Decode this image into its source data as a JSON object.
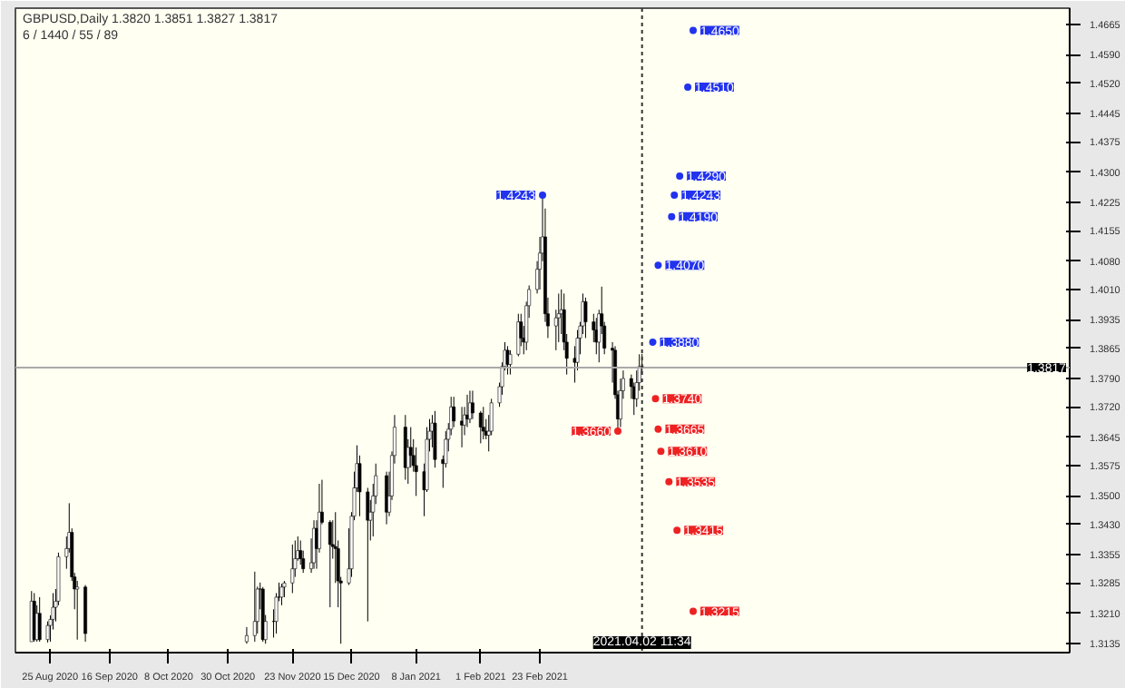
{
  "chart_data": {
    "type": "candlestick",
    "title": "GBPUSD,Daily 1.3820 1.3851 1.3827 1.3817",
    "subtitle": "6 / 1440 / 55 / 89",
    "x": [
      "2020-08-18",
      "2020-08-19",
      "2020-08-20",
      "2020-08-21",
      "2020-08-24",
      "2020-08-25",
      "2020-08-26",
      "2020-08-27",
      "2020-08-28",
      "2020-08-31",
      "2020-09-01",
      "2020-09-02",
      "2020-09-03",
      "2020-09-04",
      "2020-09-07",
      "2020-11-06",
      "2020-11-09",
      "2020-11-10",
      "2020-11-11",
      "2020-11-12",
      "2020-11-13",
      "2020-11-16",
      "2020-11-17",
      "2020-11-18",
      "2020-11-19",
      "2020-11-20",
      "2020-11-23",
      "2020-11-24",
      "2020-11-25",
      "2020-11-26",
      "2020-11-27",
      "2020-11-30",
      "2020-12-01",
      "2020-12-02",
      "2020-12-03",
      "2020-12-04",
      "2020-12-07",
      "2020-12-08",
      "2020-12-09",
      "2020-12-10",
      "2020-12-11",
      "2020-12-14",
      "2020-12-15",
      "2020-12-16",
      "2020-12-17",
      "2020-12-18",
      "2020-12-21",
      "2020-12-22",
      "2020-12-23",
      "2020-12-24",
      "2020-12-28",
      "2020-12-29",
      "2020-12-30",
      "2020-12-31",
      "2021-01-04",
      "2021-01-05",
      "2021-01-06",
      "2021-01-07",
      "2021-01-08",
      "2021-01-11",
      "2021-01-12",
      "2021-01-13",
      "2021-01-14",
      "2021-01-15",
      "2021-01-18",
      "2021-01-19",
      "2021-01-20",
      "2021-01-21",
      "2021-01-22",
      "2021-01-25",
      "2021-01-26",
      "2021-01-27",
      "2021-01-28",
      "2021-01-29",
      "2021-02-01",
      "2021-02-02",
      "2021-02-03",
      "2021-02-04",
      "2021-02-05",
      "2021-02-08",
      "2021-02-09",
      "2021-02-10",
      "2021-02-11",
      "2021-02-12",
      "2021-02-15",
      "2021-02-16",
      "2021-02-17",
      "2021-02-18",
      "2021-02-19",
      "2021-02-22",
      "2021-02-23",
      "2021-02-24",
      "2021-02-25",
      "2021-02-26",
      "2021-03-01",
      "2021-03-02",
      "2021-03-03",
      "2021-03-04",
      "2021-03-05",
      "2021-03-08",
      "2021-03-09",
      "2021-03-10",
      "2021-03-11",
      "2021-03-12",
      "2021-03-15",
      "2021-03-16",
      "2021-03-17",
      "2021-03-18",
      "2021-03-19",
      "2021-03-22",
      "2021-03-23",
      "2021-03-24",
      "2021-03-25",
      "2021-03-26",
      "2021-03-29",
      "2021-03-30",
      "2021-03-31",
      "2021-04-01",
      "2021-04-02"
    ],
    "ohlc": [
      [
        1.314,
        1.3265,
        1.314,
        1.324
      ],
      [
        1.324,
        1.326,
        1.314,
        1.3145
      ],
      [
        1.3145,
        1.323,
        1.314,
        1.321
      ],
      [
        1.321,
        1.325,
        1.314,
        1.3145
      ],
      [
        1.3145,
        1.319,
        1.3138,
        1.318
      ],
      [
        1.318,
        1.3205,
        1.314,
        1.3195
      ],
      [
        1.3195,
        1.326,
        1.317,
        1.3225
      ],
      [
        1.3225,
        1.327,
        1.319,
        1.324
      ],
      [
        1.324,
        1.336,
        1.323,
        1.335
      ],
      [
        1.335,
        1.34,
        1.332,
        1.337
      ],
      [
        1.337,
        1.3482,
        1.336,
        1.341
      ],
      [
        1.341,
        1.342,
        1.329,
        1.33
      ],
      [
        1.33,
        1.331,
        1.322,
        1.327
      ],
      [
        1.327,
        1.329,
        1.3145,
        1.3275
      ],
      [
        1.3275,
        1.328,
        1.314,
        1.316
      ],
      [
        1.314,
        1.3176,
        1.3135,
        1.3155
      ],
      [
        1.3155,
        1.3313,
        1.314,
        1.319
      ],
      [
        1.319,
        1.3276,
        1.316,
        1.327
      ],
      [
        1.327,
        1.3286,
        1.322,
        1.327
      ],
      [
        1.327,
        1.3275,
        1.314,
        1.3145
      ],
      [
        1.3145,
        1.3206,
        1.3135,
        1.319
      ],
      [
        1.319,
        1.322,
        1.315,
        1.319
      ],
      [
        1.319,
        1.326,
        1.316,
        1.325
      ],
      [
        1.325,
        1.3286,
        1.324,
        1.325
      ],
      [
        1.325,
        1.3283,
        1.323,
        1.3275
      ],
      [
        1.3275,
        1.329,
        1.325,
        1.3285
      ],
      [
        1.3285,
        1.338,
        1.326,
        1.332
      ],
      [
        1.332,
        1.339,
        1.33,
        1.3345
      ],
      [
        1.3345,
        1.34,
        1.334,
        1.3365
      ],
      [
        1.3365,
        1.339,
        1.333,
        1.3345
      ],
      [
        1.3345,
        1.3365,
        1.331,
        1.332
      ],
      [
        1.332,
        1.3395,
        1.331,
        1.3335
      ],
      [
        1.3335,
        1.344,
        1.332,
        1.342
      ],
      [
        1.342,
        1.344,
        1.332,
        1.337
      ],
      [
        1.337,
        1.353,
        1.336,
        1.346
      ],
      [
        1.346,
        1.354,
        1.343,
        1.3435
      ],
      [
        1.3435,
        1.344,
        1.3225,
        1.338
      ],
      [
        1.338,
        1.344,
        1.3345,
        1.3375
      ],
      [
        1.3375,
        1.346,
        1.3285,
        1.337
      ],
      [
        1.337,
        1.339,
        1.3225,
        1.329
      ],
      [
        1.329,
        1.33,
        1.3135,
        1.3285
      ],
      [
        1.3285,
        1.342,
        1.328,
        1.332
      ],
      [
        1.332,
        1.346,
        1.33,
        1.345
      ],
      [
        1.345,
        1.356,
        1.344,
        1.352
      ],
      [
        1.352,
        1.3625,
        1.351,
        1.358
      ],
      [
        1.358,
        1.36,
        1.345,
        1.351
      ],
      [
        1.351,
        1.352,
        1.319,
        1.344
      ],
      [
        1.344,
        1.349,
        1.339,
        1.346
      ],
      [
        1.346,
        1.353,
        1.34,
        1.35
      ],
      [
        1.35,
        1.358,
        1.348,
        1.355
      ],
      [
        1.355,
        1.356,
        1.343,
        1.346
      ],
      [
        1.346,
        1.356,
        1.345,
        1.35
      ],
      [
        1.35,
        1.361,
        1.349,
        1.36
      ],
      [
        1.36,
        1.37,
        1.358,
        1.367
      ],
      [
        1.367,
        1.37,
        1.354,
        1.357
      ],
      [
        1.357,
        1.364,
        1.353,
        1.362
      ],
      [
        1.362,
        1.367,
        1.357,
        1.36
      ],
      [
        1.36,
        1.364,
        1.356,
        1.3575
      ],
      [
        1.3575,
        1.362,
        1.35,
        1.356
      ],
      [
        1.356,
        1.358,
        1.345,
        1.3515
      ],
      [
        1.3515,
        1.367,
        1.351,
        1.364
      ],
      [
        1.364,
        1.369,
        1.361,
        1.366
      ],
      [
        1.366,
        1.37,
        1.362,
        1.368
      ],
      [
        1.368,
        1.371,
        1.357,
        1.359
      ],
      [
        1.359,
        1.36,
        1.352,
        1.358
      ],
      [
        1.358,
        1.366,
        1.357,
        1.364
      ],
      [
        1.364,
        1.368,
        1.361,
        1.3665
      ],
      [
        1.3665,
        1.3745,
        1.365,
        1.372
      ],
      [
        1.372,
        1.3745,
        1.367,
        1.3685
      ],
      [
        1.3685,
        1.372,
        1.362,
        1.3675
      ],
      [
        1.3675,
        1.372,
        1.365,
        1.37
      ],
      [
        1.37,
        1.375,
        1.367,
        1.369
      ],
      [
        1.369,
        1.376,
        1.368,
        1.373
      ],
      [
        1.373,
        1.376,
        1.369,
        1.3705
      ],
      [
        1.3705,
        1.371,
        1.363,
        1.367
      ],
      [
        1.367,
        1.372,
        1.364,
        1.366
      ],
      [
        1.366,
        1.369,
        1.364,
        1.365
      ],
      [
        1.365,
        1.37,
        1.361,
        1.366
      ],
      [
        1.366,
        1.374,
        1.365,
        1.373
      ],
      [
        1.373,
        1.378,
        1.372,
        1.377
      ],
      [
        1.377,
        1.383,
        1.375,
        1.382
      ],
      [
        1.382,
        1.388,
        1.381,
        1.386
      ],
      [
        1.386,
        1.387,
        1.38,
        1.3825
      ],
      [
        1.3825,
        1.386,
        1.38,
        1.385
      ],
      [
        1.385,
        1.395,
        1.3845,
        1.393
      ],
      [
        1.393,
        1.395,
        1.387,
        1.389
      ],
      [
        1.389,
        1.392,
        1.385,
        1.388
      ],
      [
        1.388,
        1.398,
        1.386,
        1.397
      ],
      [
        1.397,
        1.402,
        1.394,
        1.401
      ],
      [
        1.401,
        1.408,
        1.4,
        1.406
      ],
      [
        1.406,
        1.414,
        1.401,
        1.41
      ],
      [
        1.41,
        1.4243,
        1.408,
        1.414
      ],
      [
        1.414,
        1.421,
        1.393,
        1.395
      ],
      [
        1.395,
        1.399,
        1.389,
        1.392
      ],
      [
        1.392,
        1.396,
        1.386,
        1.394
      ],
      [
        1.394,
        1.4,
        1.388,
        1.395
      ],
      [
        1.395,
        1.401,
        1.39,
        1.396
      ],
      [
        1.396,
        1.4,
        1.386,
        1.388
      ],
      [
        1.388,
        1.39,
        1.38,
        1.384
      ],
      [
        1.384,
        1.387,
        1.378,
        1.383
      ],
      [
        1.383,
        1.391,
        1.381,
        1.389
      ],
      [
        1.389,
        1.393,
        1.385,
        1.392
      ],
      [
        1.392,
        1.4,
        1.39,
        1.398
      ],
      [
        1.398,
        1.399,
        1.389,
        1.393
      ],
      [
        1.393,
        1.395,
        1.388,
        1.391
      ],
      [
        1.391,
        1.394,
        1.385,
        1.388
      ],
      [
        1.388,
        1.396,
        1.383,
        1.395
      ],
      [
        1.395,
        1.4017,
        1.39,
        1.392
      ],
      [
        1.392,
        1.393,
        1.385,
        1.3865
      ],
      [
        1.3865,
        1.388,
        1.378,
        1.386
      ],
      [
        1.386,
        1.387,
        1.374,
        1.375
      ],
      [
        1.375,
        1.376,
        1.366,
        1.369
      ],
      [
        1.369,
        1.379,
        1.367,
        1.376
      ],
      [
        1.376,
        1.381,
        1.374,
        1.379
      ],
      [
        1.379,
        1.38,
        1.374,
        1.377
      ],
      [
        1.377,
        1.378,
        1.37,
        1.374
      ],
      [
        1.374,
        1.381,
        1.372,
        1.378
      ],
      [
        1.378,
        1.385,
        1.376,
        1.382
      ],
      [
        1.382,
        1.3851,
        1.3805,
        1.3817
      ]
    ],
    "xlim": [
      "2020-08-12",
      "2021-09-08"
    ],
    "xticks": [
      {
        "value": "2020-08-25",
        "label": "25 Aug 2020"
      },
      {
        "value": "2020-09-16",
        "label": "16 Sep 2020"
      },
      {
        "value": "2020-10-08",
        "label": "8 Oct 2020"
      },
      {
        "value": "2020-10-30",
        "label": "30 Oct 2020"
      },
      {
        "value": "2020-11-23",
        "label": "23 Nov 2020"
      },
      {
        "value": "2020-12-15",
        "label": "15 Dec 2020"
      },
      {
        "value": "2021-01-08",
        "label": "8 Jan 2021"
      },
      {
        "value": "2021-02-01",
        "label": "1 Feb 2021"
      },
      {
        "value": "2021-02-23",
        "label": "23 Feb 2021"
      }
    ],
    "ylim": [
      1.3113,
      1.4705
    ],
    "yticks": [
      {
        "value": 1.4665,
        "label": "1.4665"
      },
      {
        "value": 1.459,
        "label": "1.4590"
      },
      {
        "value": 1.452,
        "label": "1.4520"
      },
      {
        "value": 1.4445,
        "label": "1.4445"
      },
      {
        "value": 1.4375,
        "label": "1.4375"
      },
      {
        "value": 1.43,
        "label": "1.4300"
      },
      {
        "value": 1.4225,
        "label": "1.4225"
      },
      {
        "value": 1.4155,
        "label": "1.4155"
      },
      {
        "value": 1.408,
        "label": "1.4080"
      },
      {
        "value": 1.401,
        "label": "1.4010"
      },
      {
        "value": 1.3935,
        "label": "1.3935"
      },
      {
        "value": 1.3865,
        "label": "1.3865"
      },
      {
        "value": 1.379,
        "label": "1.3790"
      },
      {
        "value": 1.372,
        "label": "1.3720"
      },
      {
        "value": 1.3645,
        "label": "1.3645"
      },
      {
        "value": 1.3575,
        "label": "1.3575"
      },
      {
        "value": 1.35,
        "label": "1.3500"
      },
      {
        "value": 1.343,
        "label": "1.3430"
      },
      {
        "value": 1.3355,
        "label": "1.3355"
      },
      {
        "value": 1.3285,
        "label": "1.3285"
      },
      {
        "value": 1.321,
        "label": "1.3210"
      },
      {
        "value": 1.3135,
        "label": "1.3135"
      }
    ],
    "ref_lines": [
      {
        "axis": "y",
        "value": 1.3817,
        "label": "1.3817"
      },
      {
        "axis": "x",
        "value": "2021-04-02",
        "label": "2021.04.02 11:34"
      }
    ],
    "annotations": [
      {
        "text": "1.4243",
        "x": "2021-02-24",
        "y": 1.4243
      },
      {
        "text": "1.3660",
        "x": "2021-03-24",
        "y": 1.366
      },
      {
        "text": "1.4650",
        "x": "2021-04-21",
        "y": 1.465
      },
      {
        "text": "1.4510",
        "x": "2021-04-19",
        "y": 1.451
      },
      {
        "text": "1.4290",
        "x": "2021-04-16",
        "y": 1.429
      },
      {
        "text": "1.4243",
        "x": "2021-04-14",
        "y": 1.4243
      },
      {
        "text": "1.4190",
        "x": "2021-04-13",
        "y": 1.419
      },
      {
        "text": "1.4070",
        "x": "2021-04-08",
        "y": 1.407
      },
      {
        "text": "1.3880",
        "x": "2021-04-06",
        "y": 1.388
      },
      {
        "text": "1.3740",
        "x": "2021-04-07",
        "y": 1.374
      },
      {
        "text": "1.3665",
        "x": "2021-04-08",
        "y": 1.3665
      },
      {
        "text": "1.3610",
        "x": "2021-04-09",
        "y": 1.361
      },
      {
        "text": "1.3535",
        "x": "2021-04-12",
        "y": 1.3535
      },
      {
        "text": "1.3415",
        "x": "2021-04-15",
        "y": 1.3415
      },
      {
        "text": "1.3215",
        "x": "2021-04-21",
        "y": 1.3215
      }
    ]
  }
}
